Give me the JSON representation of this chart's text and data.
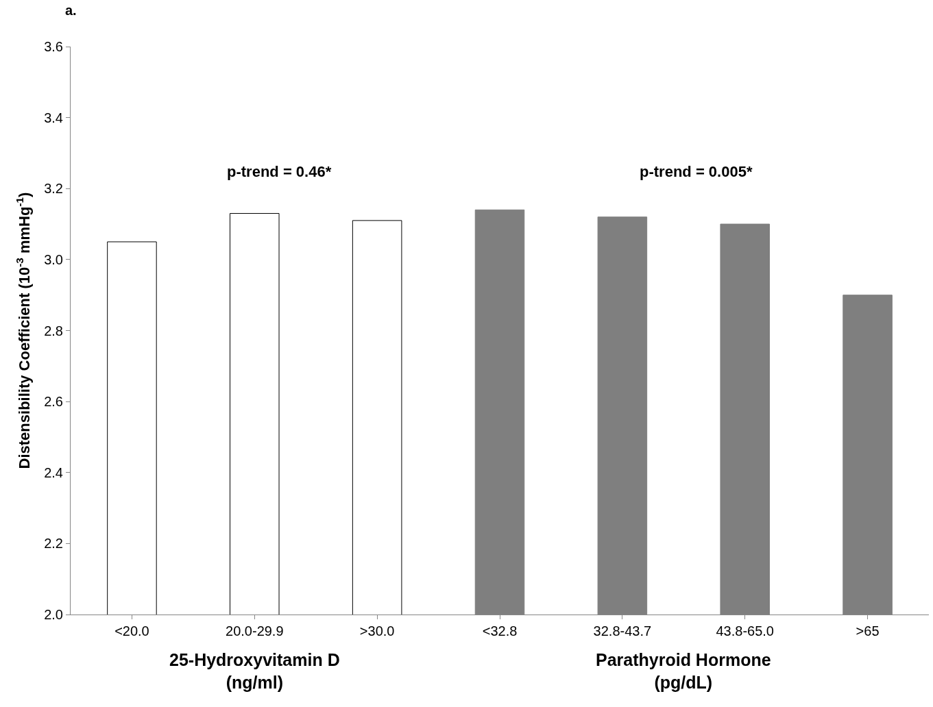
{
  "chart_data": {
    "type": "bar",
    "title": "a.",
    "ylabel": "Distensibility Coefficient (10$^{-3}$ mmHg$^{-1}$)",
    "categories": [
      "<20.0",
      "20.0-29.9",
      ">30.0",
      "<32.8",
      "32.8-43.7",
      "43.8-65.0",
      ">65"
    ],
    "values": [
      3.05,
      3.13,
      3.11,
      3.14,
      3.12,
      3.1,
      2.9
    ],
    "colors": [
      "#ffffff",
      "#ffffff",
      "#ffffff",
      "#7f7f7f",
      "#7f7f7f",
      "#7f7f7f",
      "#7f7f7f"
    ],
    "ylim": [
      2.0,
      3.6
    ],
    "yticks": [
      {
        "value": 2.0,
        "label": "2.0"
      },
      {
        "value": 2.2,
        "label": "2.2"
      },
      {
        "value": 2.4,
        "label": "2.4"
      },
      {
        "value": 2.6,
        "label": "2.6"
      },
      {
        "value": 2.8,
        "label": "2.8"
      },
      {
        "value": 3.0,
        "label": "3.0"
      },
      {
        "value": 3.2,
        "label": "3.2"
      },
      {
        "value": 3.4,
        "label": "3.4"
      },
      {
        "value": 3.6,
        "label": "3.6"
      }
    ],
    "annotations": [
      "p-trend = 0.46*",
      "p-trend = 0.005*",
      "25-Hydroxyvitamin D\n(ng/ml)",
      "Parathyroid Hormone\n(pg/dL)"
    ]
  }
}
